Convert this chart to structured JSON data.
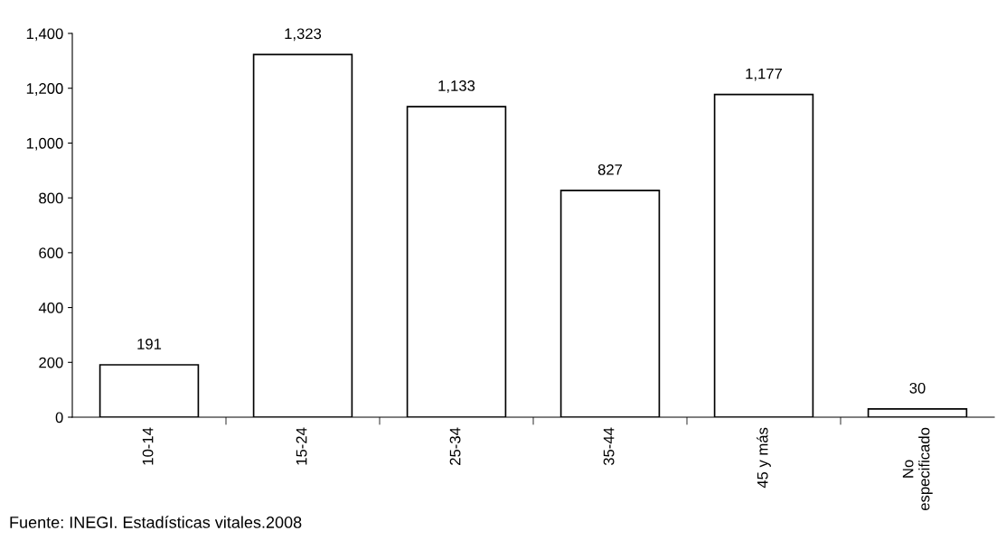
{
  "chart_data": {
    "type": "bar",
    "categories": [
      "10-14",
      "15-24",
      "25-34",
      "35-44",
      "45 y más",
      "No\nespecificado"
    ],
    "values": [
      191,
      1323,
      1133,
      827,
      1177,
      30
    ],
    "value_labels": [
      "191",
      "1,323",
      "1,133",
      "827",
      "1,177",
      "30"
    ],
    "color": "#ffffff",
    "ylim": [
      0,
      1400
    ],
    "yticks": [
      {
        "value": 0,
        "label": "0"
      },
      {
        "value": 200,
        "label": "200"
      },
      {
        "value": 400,
        "label": "400"
      },
      {
        "value": 600,
        "label": "600"
      },
      {
        "value": 800,
        "label": "800"
      },
      {
        "value": 1000,
        "label": "1,000"
      },
      {
        "value": 1200,
        "label": "1,200"
      },
      {
        "value": 1400,
        "label": "1,400"
      }
    ],
    "grid": false,
    "legend": false,
    "annotations": [
      "Fuente: INEGI. Estadísticas vitales.2008"
    ]
  }
}
